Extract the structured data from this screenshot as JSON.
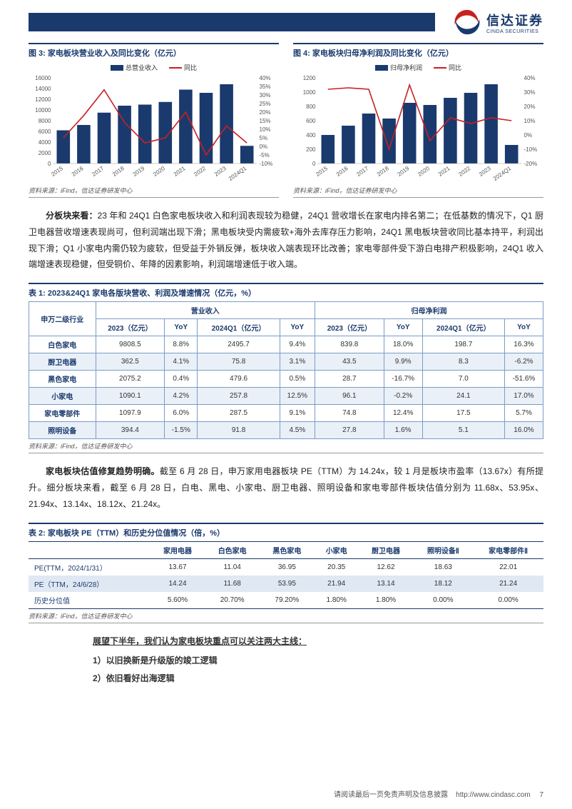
{
  "brand": {
    "cn": "信达证券",
    "en": "CINDA SECURITIES"
  },
  "chart3": {
    "title": "图 3: 家电板块营业收入及同比变化（亿元）",
    "legend_bar": "总营业收入",
    "legend_line": "同比",
    "source": "资料来源：iFind，信达证券研发中心",
    "bar_color": "#1a3a6e",
    "line_color": "#c82020",
    "categories": [
      "2015",
      "2016",
      "2017",
      "2018",
      "2019",
      "2020",
      "2021",
      "2022",
      "2023",
      "2024Q1"
    ],
    "y_left_max": 16000,
    "y_left_step": 2000,
    "y_right_max": 40,
    "y_right_min": -10,
    "y_right_step": 5,
    "bars": [
      6200,
      7200,
      9500,
      10800,
      11000,
      11500,
      13800,
      13200,
      14800,
      3300
    ],
    "line": [
      5,
      18,
      33,
      14,
      2,
      5,
      20,
      -5,
      12,
      2
    ]
  },
  "chart4": {
    "title": "图 4: 家电板块归母净利润及同比变化（亿元）",
    "legend_bar": "归母净利润",
    "legend_line": "同比",
    "source": "资料来源：iFind，信达证券研发中心",
    "bar_color": "#1a3a6e",
    "line_color": "#c82020",
    "categories": [
      "2015",
      "2016",
      "2017",
      "2018",
      "2019",
      "2020",
      "2021",
      "2022",
      "2023",
      "2024Q1"
    ],
    "y_left_max": 1200,
    "y_left_step": 200,
    "y_right_max": 40,
    "y_right_min": -20,
    "y_right_step": 10,
    "bars": [
      400,
      530,
      700,
      630,
      850,
      820,
      920,
      990,
      1110,
      260
    ],
    "line": [
      32,
      33,
      32,
      -10,
      35,
      -4,
      12,
      8,
      12,
      10
    ]
  },
  "para1": {
    "lead": "分板块来看：",
    "body": "23 年和 24Q1 白色家电板块收入和利润表现较为稳健，24Q1 营收增长在家电内排名第二；在低基数的情况下，Q1 厨卫电器营收增速表现尚可，但利润端出现下滑；黑电板块受内需疲软+海外去库存压力影响，24Q1 黑电板块营收同比基本持平，利润出现下滑；Q1 小家电内需仍较为疲软，但受益于外销反弹，板块收入端表现环比改善；家电零部件受下游白电排产积极影响，24Q1 收入端增速表现稳健，但受铜价、年降的因素影响，利润端增速低于收入端。"
  },
  "table1": {
    "title": "表 1: 2023&24Q1 家电各版块营收、利润及增速情况（亿元，%）",
    "source": "资料来源：iFind，信达证券研发中心",
    "head_group_left": "营业收入",
    "head_group_right": "归母净利润",
    "col0": "申万二级行业",
    "cols": [
      "2023（亿元）",
      "YoY",
      "2024Q1（亿元）",
      "YoY",
      "2023（亿元）",
      "YoY",
      "2024Q1（亿元）",
      "YoY"
    ],
    "rows": [
      [
        "白色家电",
        "9808.5",
        "8.8%",
        "2495.7",
        "9.4%",
        "839.8",
        "18.0%",
        "198.7",
        "16.3%"
      ],
      [
        "厨卫电器",
        "362.5",
        "4.1%",
        "75.8",
        "3.1%",
        "43.5",
        "9.9%",
        "8.3",
        "-6.2%"
      ],
      [
        "黑色家电",
        "2075.2",
        "0.4%",
        "479.6",
        "0.5%",
        "28.7",
        "-16.7%",
        "7.0",
        "-51.6%"
      ],
      [
        "小家电",
        "1090.1",
        "4.2%",
        "257.8",
        "12.5%",
        "96.1",
        "-0.2%",
        "24.1",
        "17.0%"
      ],
      [
        "家电零部件",
        "1097.9",
        "6.0%",
        "287.5",
        "9.1%",
        "74.8",
        "12.4%",
        "17.5",
        "5.7%"
      ],
      [
        "照明设备",
        "394.4",
        "-1.5%",
        "91.8",
        "4.5%",
        "27.8",
        "1.6%",
        "5.1",
        "16.0%"
      ]
    ]
  },
  "para2": {
    "lead": "家电板块估值修复趋势明确。",
    "body": "截至 6 月 28 日，申万家用电器板块 PE（TTM）为 14.24x，较 1 月是板块市盈率（13.67x）有所提升。细分板块来看，截至 6 月 28 日，白电、黑电、小家电、厨卫电器、照明设备和家电零部件板块估值分别为 11.68x、53.95x、21.94x、13.14x、18.12x、21.24x。"
  },
  "table2": {
    "title": "表 2: 家电板块 PE（TTM）和历史分位值情况（倍，%）",
    "source": "资料来源：iFind，信达证券研发中心",
    "cols": [
      "",
      "家用电器",
      "白色家电",
      "黑色家电",
      "小家电",
      "厨卫电器",
      "照明设备Ⅱ",
      "家电零部件Ⅱ"
    ],
    "rows": [
      [
        "PE(TTM，2024/1/31）",
        "13.67",
        "11.04",
        "36.95",
        "20.35",
        "12.62",
        "18.63",
        "22.01"
      ],
      [
        "PE（TTM，24/6/28）",
        "14.24",
        "11.68",
        "53.95",
        "21.94",
        "13.14",
        "18.12",
        "21.24"
      ],
      [
        "历史分位值",
        "5.60%",
        "20.70%",
        "79.20%",
        "1.80%",
        "1.80%",
        "0.00%",
        "0.00%"
      ]
    ]
  },
  "outlook": {
    "head": "展望下半年，我们认为家电板块重点可以关注两大主线：",
    "item1": "1）以旧换新是升级版的竣工逻辑",
    "item2": "2）依旧看好出海逻辑"
  },
  "footer": {
    "disclaimer": "请阅读最后一页免责声明及信息披露",
    "url": "http://www.cindasc.com",
    "page": "7"
  }
}
